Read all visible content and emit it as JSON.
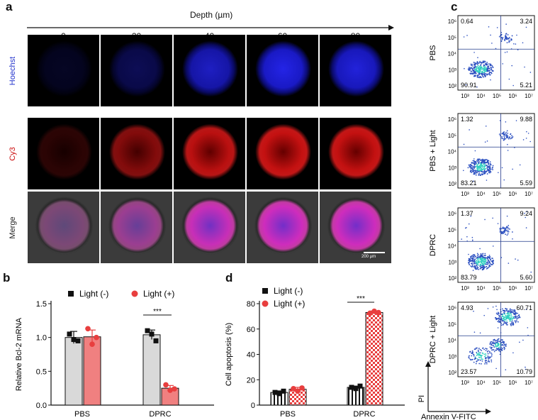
{
  "panel_labels": {
    "a": "a",
    "b": "b",
    "c": "c",
    "d": "d"
  },
  "panel_a": {
    "axis_title": "Depth (µm)",
    "depths": [
      "0",
      "20",
      "40",
      "60",
      "80"
    ],
    "rows": [
      "Hoechst",
      "Cy3",
      "Merge"
    ],
    "row_colors": {
      "Hoechst": "#2233cc",
      "Cy3": "#cc1111",
      "Merge": "#222222"
    },
    "signal_levels": {
      "Hoechst": [
        0.15,
        0.35,
        0.8,
        0.95,
        0.9
      ],
      "Cy3": [
        0.2,
        0.6,
        0.85,
        0.9,
        0.9
      ],
      "Merge": [
        0.3,
        0.55,
        0.9,
        0.95,
        0.95
      ]
    },
    "scale_bar": "200 µm"
  },
  "panel_c": {
    "rows": [
      {
        "label": "PBS",
        "ul": "0.64",
        "ur": "3.24",
        "ll": "90.91",
        "lr": "5.21"
      },
      {
        "label": "PBS + Light",
        "ul": "1.32",
        "ur": "9.88",
        "ll": "83.21",
        "lr": "5.59"
      },
      {
        "label": "DPRC",
        "ul": "1.37",
        "ur": "9.24",
        "ll": "83.79",
        "lr": "5.60"
      },
      {
        "label": "DPRC + Light",
        "ul": "4.93",
        "ur": "60.71",
        "ll": "23.57",
        "lr": "10.79"
      }
    ],
    "x_ticks": [
      "10³",
      "10⁴",
      "10⁵",
      "10⁶",
      "10⁷"
    ],
    "y_ticks": [
      "10²",
      "10³",
      "10⁴",
      "10⁵",
      "10⁶"
    ],
    "xlabel": "Annexin V-FITC",
    "ylabel": "PI"
  },
  "chart_data": [
    {
      "type": "bar",
      "panel": "b",
      "categories": [
        "PBS",
        "DPRC"
      ],
      "ylabel": "Relative Bcl-2 mRNA",
      "ylim": [
        0,
        1.5
      ],
      "yticks": [
        "0.0",
        "0.5",
        "1.0",
        "1.5"
      ],
      "series": [
        {
          "name": "Light (-)",
          "values": [
            1.0,
            1.04
          ],
          "errors": [
            0.09,
            0.07
          ],
          "color": "#d9d9d9",
          "marker_color": "#111111",
          "points": [
            [
              1.05,
              0.97,
              0.95
            ],
            [
              1.1,
              1.05,
              0.95
            ]
          ]
        },
        {
          "name": "Light (+)",
          "values": [
            1.01,
            0.25
          ],
          "errors": [
            0.1,
            0.04
          ],
          "color": "#f08080",
          "marker_color": "#e83e3e",
          "points": [
            [
              1.13,
              0.9,
              1.0
            ],
            [
              0.3,
              0.22,
              0.24
            ]
          ]
        }
      ],
      "annotation": "***"
    },
    {
      "type": "bar",
      "panel": "d",
      "categories": [
        "PBS",
        "DPRC"
      ],
      "ylabel": "Cell apoptosis (%)",
      "ylim": [
        0,
        80
      ],
      "yticks": [
        "0",
        "20",
        "40",
        "60",
        "80"
      ],
      "series": [
        {
          "name": "Light (-)",
          "values": [
            10,
            14
          ],
          "errors": [
            1.2,
            1.0
          ],
          "color": "#ffffff",
          "pattern": "vertical stripes",
          "marker_color": "#111111",
          "points": [
            [
              10,
              9,
              11
            ],
            [
              14,
              13,
              15
            ]
          ]
        },
        {
          "name": "Light (+)",
          "values": [
            12.5,
            73
          ],
          "errors": [
            1.5,
            1.2
          ],
          "color": "#ffffff",
          "pattern": "red checker",
          "marker_color": "#e83e3e",
          "points": [
            [
              13,
              11,
              13.5
            ],
            [
              72.5,
              74,
              73
            ]
          ]
        }
      ],
      "annotation": "***"
    }
  ]
}
